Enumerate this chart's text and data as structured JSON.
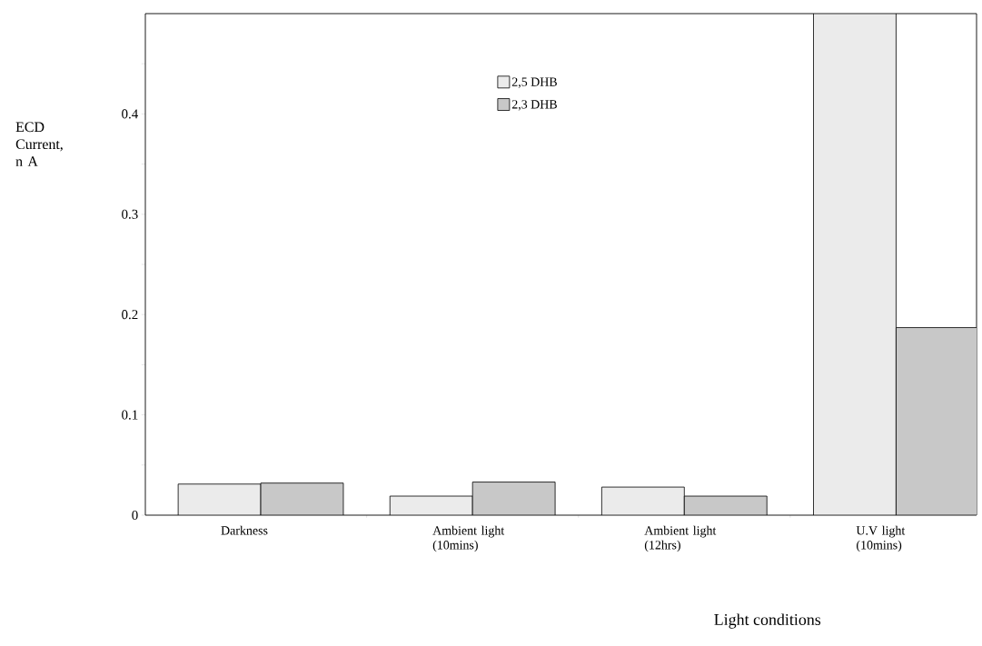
{
  "chart_data": {
    "type": "bar",
    "xlabel": "Light conditions",
    "ylabel": "ECD Current, n A",
    "categories": [
      "Darkness",
      "Ambient light (10mins)",
      "Ambient  light (12hrs)",
      "U.V light (10mins)"
    ],
    "series": [
      {
        "name": "2,5 DHB",
        "color": "#ebebeb",
        "values": [
          0.031,
          0.019,
          0.028,
          0.5
        ]
      },
      {
        "name": "2,3 DHB",
        "color": "#c8c8c8",
        "values": [
          0.032,
          0.033,
          0.019,
          0.187
        ]
      }
    ],
    "ylim": [
      0,
      0.5
    ],
    "yticks": [
      0,
      {
        "value": 0.05,
        "label": null
      },
      0.1,
      {
        "value": 0.15,
        "label": null
      },
      0.2,
      {
        "value": 0.25,
        "label": null
      },
      0.3,
      {
        "value": 0.35,
        "label": null
      },
      0.4,
      {
        "value": 0.45,
        "label": null
      }
    ],
    "legend": "top"
  }
}
